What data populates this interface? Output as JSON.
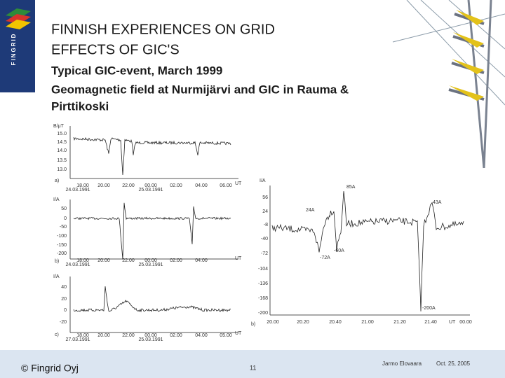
{
  "header": {
    "title_lines": [
      "FINNISH EXPERIENCES ON GRID",
      "EFFECTS OF GIC'S"
    ],
    "logo": "FINGRID"
  },
  "subtitle_lines": [
    "Typical GIC-event, March 1999",
    "Geomagnetic field at Nurmijärvi and GIC in Rauma &",
    "Pirttikoski"
  ],
  "left_charts": [
    {
      "unit": "B/μT",
      "panel": "a)",
      "axis_unit": "UT",
      "yticks": [
        "15.0",
        "14.5",
        "14.0",
        "13.5",
        "13.0"
      ],
      "xticks": [
        "18.00",
        "20.00",
        "22.00",
        "00.00",
        "02.00",
        "04.00",
        "06.00"
      ],
      "dates": [
        "24.03.1991",
        "25.03.1991"
      ]
    },
    {
      "unit": "I/A",
      "panel": "b)",
      "axis_unit": "UT",
      "yticks": [
        "50",
        "0",
        "-50",
        "-100",
        "-150",
        "-200"
      ],
      "xticks": [
        "18.00",
        "20.00",
        "22.00",
        "00.00",
        "02.00",
        "04.00"
      ],
      "dates": [
        "24.03.1991",
        "25.03.1991"
      ]
    },
    {
      "unit": "I/A",
      "panel": "c)",
      "axis_unit": "UT",
      "yticks": [
        "40",
        "20",
        "0",
        "-20"
      ],
      "xticks": [
        "18.00",
        "20.00",
        "22.00",
        "00.00",
        "02.00",
        "04.00",
        "05.00"
      ],
      "dates": [
        "27.03.1991",
        "25.03.1991"
      ]
    }
  ],
  "right_chart": {
    "unit": "I/A",
    "panel": "b)",
    "axis_unit": "UT",
    "yticks": [
      "56",
      "24",
      "-8",
      "-40",
      "-72",
      "-104",
      "-136",
      "-168",
      "-200"
    ],
    "xticks": [
      "20.00",
      "20.20",
      "20.40",
      "21.00",
      "21.20",
      "21.40",
      "00.00"
    ],
    "annotations": [
      "85A",
      "24A",
      "-60A",
      "-72A",
      "43A",
      "-200A"
    ]
  },
  "footer": {
    "copyright": "© Fingrid Oyj",
    "page": "11",
    "author": "Jarmo Elovaara",
    "date": "Oct. 25, 2005"
  }
}
